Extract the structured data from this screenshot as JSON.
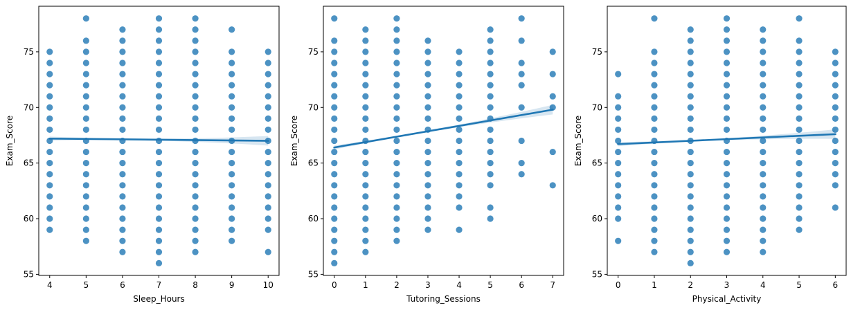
{
  "colors": {
    "points": "#1f77b4",
    "line": "#1f77b4",
    "band": "#1f77b4"
  },
  "chart_data": [
    {
      "type": "scatter",
      "title": "",
      "xlabel": "Sleep_Hours",
      "ylabel": "Exam_Score",
      "xlim": [
        3.7,
        10.3
      ],
      "ylim": [
        54.9,
        79.1
      ],
      "xticks": [
        4,
        5,
        6,
        7,
        8,
        9,
        10
      ],
      "yticks": [
        55,
        60,
        65,
        70,
        75
      ],
      "points": [
        {
          "x": 4,
          "y": [
            59,
            60,
            61,
            62,
            63,
            64,
            65,
            66,
            67,
            68,
            69,
            70,
            71,
            72,
            73,
            74,
            75
          ]
        },
        {
          "x": 5,
          "y": [
            58,
            59,
            60,
            61,
            62,
            63,
            64,
            65,
            66,
            67,
            68,
            69,
            70,
            71,
            72,
            73,
            74,
            75,
            76,
            78
          ]
        },
        {
          "x": 6,
          "y": [
            57,
            58,
            59,
            60,
            61,
            62,
            63,
            64,
            65,
            66,
            67,
            68,
            69,
            70,
            71,
            72,
            73,
            74,
            75,
            76,
            77
          ]
        },
        {
          "x": 7,
          "y": [
            56,
            57,
            58,
            59,
            60,
            61,
            62,
            63,
            64,
            65,
            66,
            67,
            68,
            69,
            70,
            71,
            72,
            73,
            74,
            75,
            76,
            77,
            78
          ]
        },
        {
          "x": 8,
          "y": [
            57,
            58,
            59,
            60,
            61,
            62,
            63,
            64,
            65,
            66,
            67,
            68,
            69,
            70,
            71,
            72,
            73,
            74,
            75,
            76,
            77,
            78
          ]
        },
        {
          "x": 9,
          "y": [
            58,
            59,
            60,
            61,
            62,
            63,
            64,
            65,
            66,
            67,
            68,
            69,
            70,
            71,
            72,
            73,
            74,
            75,
            77
          ]
        },
        {
          "x": 10,
          "y": [
            57,
            59,
            60,
            61,
            62,
            63,
            64,
            65,
            66,
            67,
            68,
            69,
            70,
            71,
            72,
            73,
            74,
            75
          ]
        }
      ],
      "regression": {
        "x": [
          4,
          10
        ],
        "y": [
          67.2,
          67.0
        ]
      }
    },
    {
      "type": "scatter",
      "title": "",
      "xlabel": "Tutoring_Sessions",
      "ylabel": "Exam_Score",
      "xlim": [
        -0.35,
        7.35
      ],
      "ylim": [
        54.9,
        79.1
      ],
      "xticks": [
        0,
        1,
        2,
        3,
        4,
        5,
        6,
        7
      ],
      "yticks": [
        55,
        60,
        65,
        70,
        75
      ],
      "points": [
        {
          "x": 0,
          "y": [
            56,
            57,
            58,
            59,
            60,
            61,
            62,
            63,
            64,
            65,
            66,
            67,
            68,
            69,
            70,
            71,
            72,
            73,
            74,
            75,
            76,
            78
          ]
        },
        {
          "x": 1,
          "y": [
            57,
            58,
            59,
            60,
            61,
            62,
            63,
            64,
            65,
            66,
            67,
            68,
            69,
            70,
            71,
            72,
            73,
            74,
            75,
            76,
            77
          ]
        },
        {
          "x": 2,
          "y": [
            58,
            59,
            60,
            61,
            62,
            63,
            64,
            65,
            66,
            67,
            68,
            69,
            70,
            71,
            72,
            73,
            74,
            75,
            76,
            77,
            78
          ]
        },
        {
          "x": 3,
          "y": [
            59,
            60,
            61,
            62,
            63,
            64,
            65,
            66,
            67,
            68,
            69,
            70,
            71,
            72,
            73,
            74,
            75,
            76
          ]
        },
        {
          "x": 4,
          "y": [
            59,
            61,
            62,
            63,
            64,
            65,
            66,
            67,
            68,
            69,
            70,
            71,
            72,
            73,
            74,
            75
          ]
        },
        {
          "x": 5,
          "y": [
            60,
            61,
            63,
            64,
            65,
            66,
            67,
            68,
            69,
            70,
            71,
            72,
            73,
            74,
            75,
            76,
            77
          ]
        },
        {
          "x": 6,
          "y": [
            64,
            65,
            67,
            70,
            72,
            73,
            74,
            76,
            78
          ]
        },
        {
          "x": 7,
          "y": [
            63,
            66,
            70,
            71,
            73,
            75
          ]
        }
      ],
      "regression": {
        "x": [
          0,
          7
        ],
        "y": [
          66.4,
          69.8
        ]
      }
    },
    {
      "type": "scatter",
      "title": "",
      "xlabel": "Physical_Activity",
      "ylabel": "Exam_Score",
      "xlim": [
        -0.3,
        6.3
      ],
      "ylim": [
        54.9,
        79.1
      ],
      "xticks": [
        0,
        1,
        2,
        3,
        4,
        5,
        6
      ],
      "yticks": [
        55,
        60,
        65,
        70,
        75
      ],
      "points": [
        {
          "x": 0,
          "y": [
            58,
            60,
            61,
            62,
            63,
            64,
            65,
            66,
            67,
            68,
            69,
            70,
            71,
            73
          ]
        },
        {
          "x": 1,
          "y": [
            57,
            58,
            59,
            60,
            61,
            62,
            63,
            64,
            65,
            66,
            67,
            68,
            69,
            70,
            71,
            72,
            73,
            74,
            75,
            78
          ]
        },
        {
          "x": 2,
          "y": [
            56,
            57,
            58,
            59,
            60,
            61,
            62,
            63,
            64,
            65,
            66,
            67,
            68,
            69,
            70,
            71,
            72,
            73,
            74,
            75,
            76,
            77
          ]
        },
        {
          "x": 3,
          "y": [
            57,
            58,
            59,
            60,
            61,
            62,
            63,
            64,
            65,
            66,
            67,
            68,
            69,
            70,
            71,
            72,
            73,
            74,
            75,
            76,
            77,
            78
          ]
        },
        {
          "x": 4,
          "y": [
            57,
            58,
            59,
            60,
            61,
            62,
            63,
            64,
            65,
            66,
            67,
            68,
            69,
            70,
            71,
            72,
            73,
            74,
            75,
            76,
            77
          ]
        },
        {
          "x": 5,
          "y": [
            59,
            60,
            61,
            62,
            63,
            64,
            65,
            66,
            67,
            68,
            69,
            70,
            71,
            72,
            73,
            74,
            75,
            76,
            78
          ]
        },
        {
          "x": 6,
          "y": [
            61,
            63,
            64,
            65,
            66,
            67,
            68,
            69,
            70,
            71,
            72,
            73,
            74,
            75
          ]
        }
      ],
      "regression": {
        "x": [
          0,
          6
        ],
        "y": [
          66.7,
          67.6
        ]
      }
    }
  ]
}
